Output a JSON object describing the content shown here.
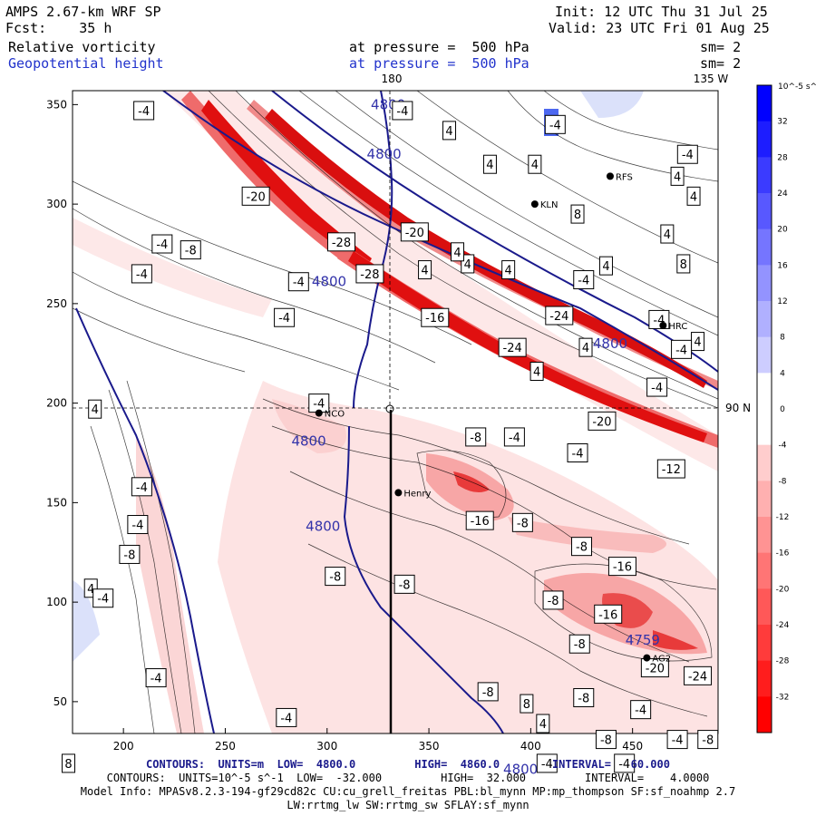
{
  "header": {
    "model": "AMPS 2.67-km WRF SP",
    "fcst_label": "Fcst:",
    "fcst_value": "35 h",
    "init": "Init: 12 UTC Thu 31 Jul 25",
    "valid": "Valid: 23 UTC Fri 01 Aug 25",
    "field1": "Relative vorticity",
    "field1_level": "at pressure =  500 hPa",
    "field1_sm": "sm= 2",
    "field2": "Geopotential height",
    "field2_level": "at pressure =  500 hPa",
    "field2_sm": "sm= 2"
  },
  "map": {
    "lon_top_label": "180",
    "lon_right_label": "135 W",
    "lat_right_label": "90 N",
    "x_ticks": [
      "200",
      "250",
      "300",
      "350",
      "400",
      "450"
    ],
    "y_ticks": [
      "350",
      "300",
      "250",
      "200",
      "150",
      "100",
      "50"
    ],
    "x_tick_values": [
      200,
      250,
      300,
      350,
      400,
      450
    ],
    "y_tick_values": [
      350,
      300,
      250,
      200,
      150,
      100,
      50
    ],
    "x_range": [
      175,
      492
    ],
    "y_range": [
      34,
      357
    ],
    "stations": [
      {
        "name": "NCO",
        "x": 296,
        "y": 195
      },
      {
        "name": "Henry",
        "x": 335,
        "y": 155
      },
      {
        "name": "KLN",
        "x": 402,
        "y": 300
      },
      {
        "name": "RFS",
        "x": 439,
        "y": 314
      },
      {
        "name": "HRC",
        "x": 465,
        "y": 239
      },
      {
        "name": "AG2",
        "x": 457,
        "y": 72
      }
    ],
    "contour_labels": [
      {
        "text": "-4",
        "x": 210,
        "y": 347
      },
      {
        "text": "4800",
        "x": 330,
        "y": 350
      },
      {
        "text": "-4",
        "x": 337,
        "y": 347
      },
      {
        "text": "4",
        "x": 360,
        "y": 337
      },
      {
        "text": "4800",
        "x": 328,
        "y": 325
      },
      {
        "text": "4",
        "x": 380,
        "y": 320
      },
      {
        "text": "4",
        "x": 402,
        "y": 320
      },
      {
        "text": "-4",
        "x": 412,
        "y": 340
      },
      {
        "text": "8",
        "x": 423,
        "y": 295
      },
      {
        "text": "-20",
        "x": 265,
        "y": 304
      },
      {
        "text": "-4",
        "x": 219,
        "y": 280
      },
      {
        "text": "-8",
        "x": 233,
        "y": 277
      },
      {
        "text": "-4",
        "x": 209,
        "y": 265
      },
      {
        "text": "-28",
        "x": 307,
        "y": 281
      },
      {
        "text": "-20",
        "x": 343,
        "y": 286
      },
      {
        "text": "4",
        "x": 369,
        "y": 270
      },
      {
        "text": "4",
        "x": 348,
        "y": 267
      },
      {
        "text": "4",
        "x": 364,
        "y": 276
      },
      {
        "text": "4",
        "x": 389,
        "y": 267
      },
      {
        "text": "-4",
        "x": 426,
        "y": 262
      },
      {
        "text": "4",
        "x": 437,
        "y": 269
      },
      {
        "text": "8",
        "x": 475,
        "y": 270
      },
      {
        "text": "-4",
        "x": 477,
        "y": 325
      },
      {
        "text": "4",
        "x": 480,
        "y": 304
      },
      {
        "text": "4",
        "x": 472,
        "y": 314
      },
      {
        "text": "4",
        "x": 467,
        "y": 285
      },
      {
        "text": "4800",
        "x": 301,
        "y": 261
      },
      {
        "text": "-4",
        "x": 286,
        "y": 261
      },
      {
        "text": "-28",
        "x": 321,
        "y": 265
      },
      {
        "text": "-4",
        "x": 279,
        "y": 243
      },
      {
        "text": "-16",
        "x": 353,
        "y": 243
      },
      {
        "text": "-24",
        "x": 414,
        "y": 244
      },
      {
        "text": "-4",
        "x": 463,
        "y": 242
      },
      {
        "text": "4",
        "x": 482,
        "y": 231
      },
      {
        "text": "-4",
        "x": 474,
        "y": 227
      },
      {
        "text": "4",
        "x": 427,
        "y": 228
      },
      {
        "text": "4800",
        "x": 439,
        "y": 230
      },
      {
        "text": "-24",
        "x": 391,
        "y": 228
      },
      {
        "text": "4",
        "x": 403,
        "y": 216
      },
      {
        "text": "-4",
        "x": 462,
        "y": 208
      },
      {
        "text": "4",
        "x": 186,
        "y": 197
      },
      {
        "text": "-4",
        "x": 296,
        "y": 200
      },
      {
        "text": "-20",
        "x": 435,
        "y": 191
      },
      {
        "text": "-8",
        "x": 373,
        "y": 183
      },
      {
        "text": "-4",
        "x": 392,
        "y": 183
      },
      {
        "text": "-4",
        "x": 423,
        "y": 175
      },
      {
        "text": "-12",
        "x": 469,
        "y": 167
      },
      {
        "text": "4800",
        "x": 291,
        "y": 181
      },
      {
        "text": "-4",
        "x": 209,
        "y": 158
      },
      {
        "text": "4800",
        "x": 298,
        "y": 138
      },
      {
        "text": "-4",
        "x": 207,
        "y": 139
      },
      {
        "text": "-16",
        "x": 375,
        "y": 141
      },
      {
        "text": "-8",
        "x": 396,
        "y": 140
      },
      {
        "text": "-8",
        "x": 203,
        "y": 124
      },
      {
        "text": "-8",
        "x": 425,
        "y": 128
      },
      {
        "text": "-16",
        "x": 445,
        "y": 118
      },
      {
        "text": "-8",
        "x": 304,
        "y": 113
      },
      {
        "text": "-8",
        "x": 338,
        "y": 109
      },
      {
        "text": "4",
        "x": 184,
        "y": 107
      },
      {
        "text": "-4",
        "x": 190,
        "y": 102
      },
      {
        "text": "-8",
        "x": 411,
        "y": 101
      },
      {
        "text": "-16",
        "x": 438,
        "y": 94
      },
      {
        "text": "4759",
        "x": 455,
        "y": 81
      },
      {
        "text": "-8",
        "x": 424,
        "y": 79
      },
      {
        "text": "-20",
        "x": 461,
        "y": 67
      },
      {
        "text": "-24",
        "x": 482,
        "y": 63
      },
      {
        "text": "-4",
        "x": 216,
        "y": 62
      },
      {
        "text": "-8",
        "x": 379,
        "y": 55
      },
      {
        "text": "-8",
        "x": 426,
        "y": 52
      },
      {
        "text": "-4",
        "x": 454,
        "y": 46
      },
      {
        "text": "8",
        "x": 398,
        "y": 49
      },
      {
        "text": "4",
        "x": 406,
        "y": 39
      },
      {
        "text": "-8",
        "x": 437,
        "y": 31
      },
      {
        "text": "-4",
        "x": 472,
        "y": 31
      },
      {
        "text": "-8",
        "x": 487,
        "y": 31
      },
      {
        "text": "-4",
        "x": 280,
        "y": 42
      },
      {
        "text": "8",
        "x": 173,
        "y": 19
      },
      {
        "text": "4800",
        "x": 395,
        "y": 16
      },
      {
        "text": "-4",
        "x": 408,
        "y": 19
      },
      {
        "text": "-4",
        "x": 446,
        "y": 19
      }
    ]
  },
  "colorbar": {
    "unit_label": "10^-5 s^-1",
    "ticks": [
      "32",
      "28",
      "24",
      "20",
      "16",
      "12",
      "8",
      "4",
      "0",
      "-4",
      "-8",
      "-12",
      "-16",
      "-20",
      "-24",
      "-28",
      "-32"
    ],
    "colors": {
      "positive_max": "#0000ff",
      "zero": "#ffffff",
      "negative_max": "#ff0000"
    }
  },
  "footer": {
    "contours_height": "CONTOURS:  UNITS=m  LOW=  4800.0         HIGH=  4860.0        INTERVAL=   60.000",
    "contours_vort": "CONTOURS:  UNITS=10^-5 s^-1  LOW=  -32.000         HIGH=  32.000         INTERVAL=    4.0000",
    "model_info": "Model Info: MPASv8.2.3-194-gf29cd82c CU:cu_grell_freitas PBL:bl_mynn MP:mp_thompson SF:sf_noahmp 2.7",
    "model_info2": "LW:rrtmg_lw SW:rrtmg_sw SFLAY:sf_mynn"
  }
}
